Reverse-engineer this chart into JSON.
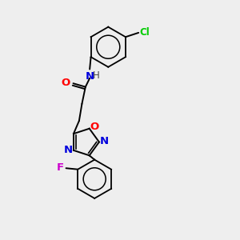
{
  "background_color": "#eeeeee",
  "bond_color": "#000000",
  "atom_colors": {
    "N": "#0000dd",
    "O_carbonyl": "#ff0000",
    "O_ring": "#ff0000",
    "Cl": "#00cc00",
    "F": "#cc00cc",
    "N_ring": "#0000dd",
    "H": "#444444"
  },
  "figsize": [
    3.0,
    3.0
  ],
  "dpi": 100
}
